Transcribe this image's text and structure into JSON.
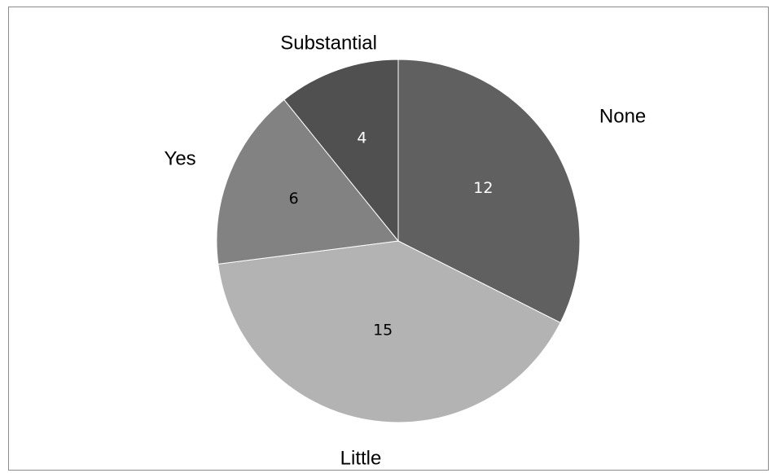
{
  "chart_data": {
    "type": "pie",
    "categories": [
      "None",
      "Little",
      "Yes",
      "Substantial"
    ],
    "values": [
      12,
      15,
      6,
      4
    ],
    "colors": [
      "#606060",
      "#b3b3b3",
      "#828282",
      "#505050"
    ],
    "value_label_colors": [
      "#ffffff",
      "#000000",
      "#000000",
      "#ffffff"
    ],
    "start_angle_deg": 0,
    "direction": "clockwise",
    "data_labels": true,
    "legend": "none"
  }
}
